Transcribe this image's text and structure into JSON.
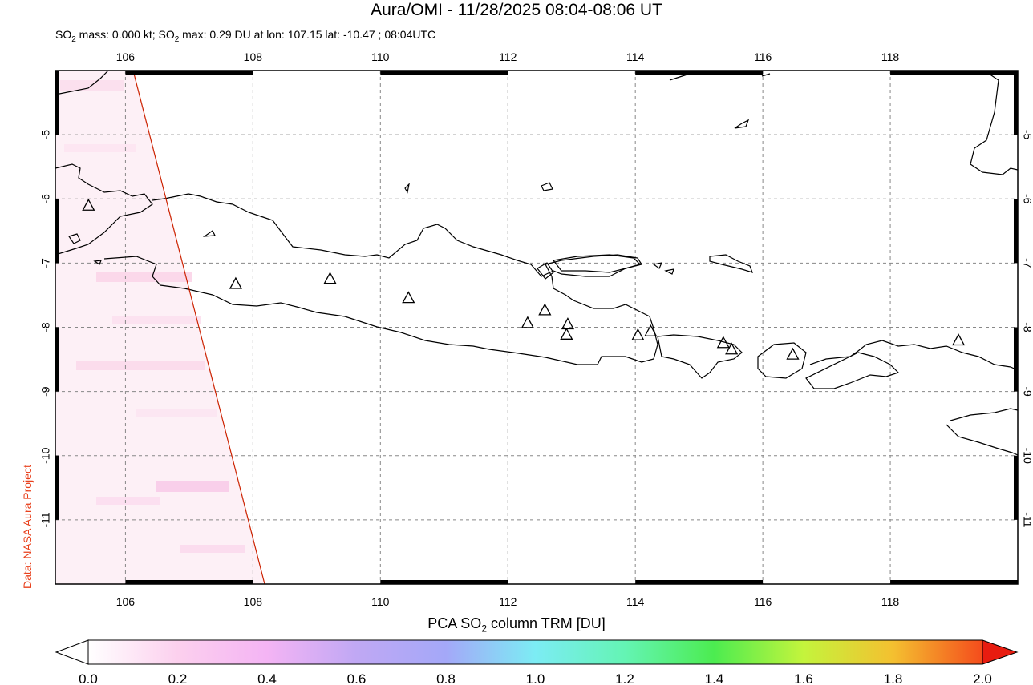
{
  "title": "Aura/OMI - 11/28/2025 08:04-08:06 UT",
  "subtitle_parts": {
    "a": "SO",
    "a_sub": "2",
    "b": " mass: 0.000 kt; SO",
    "b_sub": "2",
    "c": " max: 0.29 DU at lon: 107.15 lat: -10.47 ; 08:04UTC"
  },
  "credit": "Data: NASA Aura Project",
  "colorbar": {
    "title_main": "PCA SO",
    "title_sub": "2",
    "title_rest": " column TRM [DU]",
    "labels": [
      "0.0",
      "0.2",
      "0.4",
      "0.6",
      "0.8",
      "1.0",
      "1.2",
      "1.4",
      "1.6",
      "1.8",
      "2.0"
    ],
    "colors": [
      "#ffffff",
      "#fcd0ee",
      "#f4b4f4",
      "#c0a8f4",
      "#a4a8f8",
      "#7cecf4",
      "#64f4b4",
      "#4cec50",
      "#c4f43c",
      "#f4c030",
      "#f44c1c",
      "#e81c10"
    ]
  },
  "map": {
    "lon_range": [
      104.9,
      120.0
    ],
    "lat_range": [
      -12.0,
      -4.0
    ],
    "lon_ticks": [
      "106",
      "108",
      "110",
      "112",
      "114",
      "116",
      "118"
    ],
    "lat_ticks": [
      "-5",
      "-6",
      "-7",
      "-8",
      "-9",
      "-10",
      "-11"
    ],
    "volcanoes": [
      {
        "lon": 105.42,
        "lat": -6.1
      },
      {
        "lon": 107.73,
        "lat": -7.32
      },
      {
        "lon": 109.21,
        "lat": -7.24
      },
      {
        "lon": 110.44,
        "lat": -7.54
      },
      {
        "lon": 112.31,
        "lat": -7.93
      },
      {
        "lon": 112.58,
        "lat": -7.73
      },
      {
        "lon": 112.94,
        "lat": -7.95
      },
      {
        "lon": 112.92,
        "lat": -8.11
      },
      {
        "lon": 114.04,
        "lat": -8.12
      },
      {
        "lon": 114.24,
        "lat": -8.06
      },
      {
        "lon": 115.38,
        "lat": -8.24
      },
      {
        "lon": 115.51,
        "lat": -8.34
      },
      {
        "lon": 116.47,
        "lat": -8.42
      },
      {
        "lon": 119.07,
        "lat": -8.2
      }
    ]
  }
}
